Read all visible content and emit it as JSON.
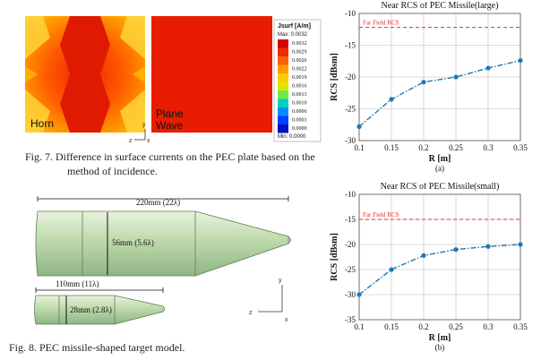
{
  "fig7": {
    "left_label": "Horn",
    "right_label_1": "Plane",
    "right_label_2": "Wave",
    "legend_title": "Jsurf [A/m]",
    "legend_max": "Max: 0.0032",
    "legend_min": "Min: 0.0000",
    "legend_ticks": [
      "0.0032",
      "0.0029",
      "0.0026",
      "0.0022",
      "0.0019",
      "0.0016",
      "0.0013",
      "0.0010",
      "0.0006",
      "0.0003",
      "0.0000"
    ],
    "legend_colors": [
      "#d40000",
      "#ee2a00",
      "#ff6000",
      "#ff9a00",
      "#ffcc00",
      "#d8e800",
      "#74e84a",
      "#00d0c0",
      "#0090ff",
      "#0040ff",
      "#0010c0"
    ],
    "axis_y": "y",
    "axis_x": "x",
    "axis_z": "z",
    "caption_line1": "Fig. 7. Difference in surface currents on the PEC plate based on the",
    "caption_line2": "method of incidence."
  },
  "fig8": {
    "large_length": "220mm (22λ)",
    "large_diameter": "56mm (5.6λ)",
    "small_length": "110mm (11λ)",
    "small_diameter": "28mm (2.8λ)",
    "axis_y": "y",
    "axis_x": "x",
    "axis_z": "z",
    "caption": "Fig. 8. PEC missile-shaped target model."
  },
  "chart_data": [
    {
      "type": "line",
      "title": "Near RCS of PEC Missile(large)",
      "xlabel": "R [m]",
      "ylabel": "RCS [dBsm]",
      "x": [
        0.1,
        0.15,
        0.2,
        0.25,
        0.3,
        0.35
      ],
      "x_tick_labels": [
        "0.1",
        "0.15",
        "0.2",
        "0.25",
        "0.3",
        "0.35"
      ],
      "xlim": [
        0.1,
        0.35
      ],
      "ylim": [
        -30,
        -10
      ],
      "y_ticks": [
        -10,
        -15,
        -20,
        -25,
        -30
      ],
      "y_tick_labels": [
        "-10",
        "-15",
        "-20",
        "-25",
        "-30"
      ],
      "grid": true,
      "series": [
        {
          "name": "Near RCS",
          "values": [
            -27.8,
            -23.5,
            -20.8,
            -20.0,
            -18.6,
            -17.4
          ],
          "color": "#1f78b4",
          "style": "dash-dot with markers"
        }
      ],
      "reference_line": {
        "label": "Far Field RCS",
        "value": -12.2,
        "color": "#e03030"
      },
      "panel_label": "(a)"
    },
    {
      "type": "line",
      "title": "Near RCS of PEC Missile(small)",
      "xlabel": "R [m]",
      "ylabel": "RCS [dBsm]",
      "x": [
        0.1,
        0.15,
        0.2,
        0.25,
        0.3,
        0.35
      ],
      "x_tick_labels": [
        "0.1",
        "0.15",
        "0.2",
        "0.25",
        "0.3",
        "0.35"
      ],
      "xlim": [
        0.1,
        0.35
      ],
      "ylim": [
        -35,
        -10
      ],
      "y_ticks": [
        -10,
        -15,
        -20,
        -25,
        -30,
        -35
      ],
      "y_tick_labels": [
        "-10",
        "-15",
        "-20",
        "-25",
        "-30",
        "-35"
      ],
      "grid": true,
      "series": [
        {
          "name": "Near RCS",
          "values": [
            -30.0,
            -25.0,
            -22.2,
            -21.0,
            -20.4,
            -20.0
          ],
          "color": "#1f78b4",
          "style": "dash-dot with markers"
        }
      ],
      "reference_line": {
        "label": "Far Field RCS",
        "value": -15.0,
        "color": "#e03030"
      },
      "panel_label": "(b)"
    }
  ]
}
